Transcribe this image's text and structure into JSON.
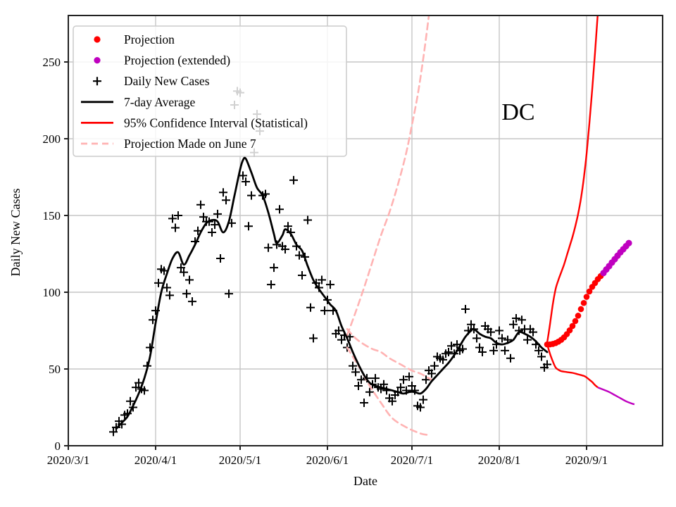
{
  "figure": {
    "region_label": "DC",
    "xlabel": "Date",
    "ylabel": "Daily New Cases"
  },
  "chart_data": {
    "type": "line",
    "title": "",
    "xlabel": "Date",
    "ylabel": "Daily New Cases",
    "year": "2020",
    "x_tick_labels": [
      "2020/3/1",
      "2020/4/1",
      "2020/5/1",
      "2020/6/1",
      "2020/7/1",
      "2020/8/1",
      "2020/9/1"
    ],
    "y_ticks": [
      0,
      50,
      100,
      150,
      200,
      250
    ],
    "ylim": [
      0,
      280
    ],
    "grid": true,
    "legend_position": "upper left",
    "region_label": "DC",
    "colors": {
      "projection": "#ff0000",
      "projection_extended": "#bf00bf",
      "daily_cases": "#000000",
      "average": "#000000",
      "confidence_interval": "#ff0000",
      "june7_projection": "#ffb3b3",
      "grid": "#c6c6c6",
      "spine": "#222222"
    },
    "legend": {
      "items": [
        {
          "label": "Projection",
          "marker": "dot",
          "color": "#ff0000"
        },
        {
          "label": "Projection (extended)",
          "marker": "dot",
          "color": "#bf00bf"
        },
        {
          "label": "Daily New Cases",
          "marker": "plus",
          "color": "#000000"
        },
        {
          "label": "7-day Average",
          "marker": "line",
          "color": "#000000"
        },
        {
          "label": "95% Confidence Interval (Statistical)",
          "marker": "line",
          "color": "#ff0000"
        },
        {
          "label": "Projection Made on June 7",
          "marker": "dashed",
          "color": "#ffb3b3"
        }
      ]
    },
    "series": {
      "daily_new_cases": [
        [
          "3/17",
          9
        ],
        [
          "3/18",
          12
        ],
        [
          "3/19",
          16
        ],
        [
          "3/20",
          14
        ],
        [
          "3/21",
          20
        ],
        [
          "3/22",
          21
        ],
        [
          "3/23",
          29
        ],
        [
          "3/24",
          25
        ],
        [
          "3/25",
          38
        ],
        [
          "3/26",
          41
        ],
        [
          "3/27",
          37
        ],
        [
          "3/28",
          36
        ],
        [
          "3/29",
          52
        ],
        [
          "3/30",
          64
        ],
        [
          "3/31",
          82
        ],
        [
          "4/1",
          88
        ],
        [
          "4/2",
          106
        ],
        [
          "4/3",
          115
        ],
        [
          "4/4",
          114
        ],
        [
          "4/5",
          103
        ],
        [
          "4/6",
          98
        ],
        [
          "4/7",
          148
        ],
        [
          "4/8",
          142
        ],
        [
          "4/9",
          150
        ],
        [
          "4/10",
          116
        ],
        [
          "4/11",
          113
        ],
        [
          "4/12",
          99
        ],
        [
          "4/13",
          108
        ],
        [
          "4/14",
          94
        ],
        [
          "4/15",
          133
        ],
        [
          "4/16",
          140
        ],
        [
          "4/17",
          157
        ],
        [
          "4/18",
          149
        ],
        [
          "4/19",
          146
        ],
        [
          "4/20",
          146
        ],
        [
          "4/21",
          139
        ],
        [
          "4/22",
          144
        ],
        [
          "4/23",
          151
        ],
        [
          "4/24",
          122
        ],
        [
          "4/25",
          165
        ],
        [
          "4/26",
          160
        ],
        [
          "4/27",
          99
        ],
        [
          "4/28",
          145
        ],
        [
          "4/29",
          222
        ],
        [
          "4/30",
          231
        ],
        [
          "5/1",
          230
        ],
        [
          "5/2",
          176
        ],
        [
          "5/3",
          172
        ],
        [
          "5/4",
          143
        ],
        [
          "5/5",
          163
        ],
        [
          "5/6",
          191
        ],
        [
          "5/7",
          216
        ],
        [
          "5/8",
          205
        ],
        [
          "5/9",
          163
        ],
        [
          "5/10",
          164
        ],
        [
          "5/11",
          129
        ],
        [
          "5/12",
          105
        ],
        [
          "5/13",
          116
        ],
        [
          "5/14",
          131
        ],
        [
          "5/15",
          154
        ],
        [
          "5/16",
          130
        ],
        [
          "5/17",
          128
        ],
        [
          "5/18",
          143
        ],
        [
          "5/19",
          139
        ],
        [
          "5/20",
          173
        ],
        [
          "5/21",
          130
        ],
        [
          "5/22",
          124
        ],
        [
          "5/23",
          111
        ],
        [
          "5/24",
          123
        ],
        [
          "5/25",
          147
        ],
        [
          "5/26",
          90
        ],
        [
          "5/27",
          70
        ],
        [
          "5/28",
          106
        ],
        [
          "5/29",
          103
        ],
        [
          "5/30",
          108
        ],
        [
          "5/31",
          88
        ],
        [
          "6/1",
          95
        ],
        [
          "6/2",
          105
        ],
        [
          "6/3",
          88
        ],
        [
          "6/4",
          73
        ],
        [
          "6/5",
          75
        ],
        [
          "6/6",
          69
        ],
        [
          "6/7",
          72
        ],
        [
          "6/8",
          64
        ],
        [
          "6/9",
          71
        ],
        [
          "6/10",
          52
        ],
        [
          "6/11",
          48
        ],
        [
          "6/12",
          39
        ],
        [
          "6/13",
          43
        ],
        [
          "6/14",
          28
        ],
        [
          "6/15",
          44
        ],
        [
          "6/16",
          35
        ],
        [
          "6/17",
          40
        ],
        [
          "6/18",
          44
        ],
        [
          "6/19",
          38
        ],
        [
          "6/20",
          37
        ],
        [
          "6/21",
          40
        ],
        [
          "6/22",
          36
        ],
        [
          "6/23",
          31
        ],
        [
          "6/24",
          29
        ],
        [
          "6/25",
          33
        ],
        [
          "6/26",
          35
        ],
        [
          "6/27",
          38
        ],
        [
          "6/28",
          43
        ],
        [
          "6/29",
          36
        ],
        [
          "6/30",
          45
        ],
        [
          "7/1",
          39
        ],
        [
          "7/2",
          36
        ],
        [
          "7/3",
          26
        ],
        [
          "7/4",
          25
        ],
        [
          "7/5",
          30
        ],
        [
          "7/6",
          43
        ],
        [
          "7/7",
          49
        ],
        [
          "7/8",
          47
        ],
        [
          "7/9",
          52
        ],
        [
          "7/10",
          58
        ],
        [
          "7/11",
          57
        ],
        [
          "7/12",
          56
        ],
        [
          "7/13",
          60
        ],
        [
          "7/14",
          61
        ],
        [
          "7/15",
          65
        ],
        [
          "7/16",
          60
        ],
        [
          "7/17",
          66
        ],
        [
          "7/18",
          62
        ],
        [
          "7/19",
          63
        ],
        [
          "7/20",
          89
        ],
        [
          "7/21",
          75
        ],
        [
          "7/22",
          79
        ],
        [
          "7/23",
          76
        ],
        [
          "7/24",
          70
        ],
        [
          "7/25",
          64
        ],
        [
          "7/26",
          61
        ],
        [
          "7/27",
          78
        ],
        [
          "7/28",
          76
        ],
        [
          "7/29",
          74
        ],
        [
          "7/30",
          62
        ],
        [
          "7/31",
          66
        ],
        [
          "8/1",
          75
        ],
        [
          "8/2",
          70
        ],
        [
          "8/3",
          62
        ],
        [
          "8/4",
          69
        ],
        [
          "8/5",
          57
        ],
        [
          "8/6",
          79
        ],
        [
          "8/7",
          83
        ],
        [
          "8/8",
          75
        ],
        [
          "8/9",
          82
        ],
        [
          "8/10",
          76
        ],
        [
          "8/11",
          69
        ],
        [
          "8/12",
          76
        ],
        [
          "8/13",
          74
        ],
        [
          "8/14",
          66
        ],
        [
          "8/15",
          62
        ],
        [
          "8/16",
          58
        ],
        [
          "8/17",
          51
        ],
        [
          "8/18",
          53
        ]
      ],
      "seven_day_average": [
        [
          "3/18",
          11
        ],
        [
          "3/20",
          15
        ],
        [
          "3/22",
          19
        ],
        [
          "3/24",
          26
        ],
        [
          "3/26",
          34
        ],
        [
          "3/28",
          44
        ],
        [
          "3/30",
          58
        ],
        [
          "4/1",
          80
        ],
        [
          "4/3",
          100
        ],
        [
          "4/5",
          112
        ],
        [
          "4/7",
          122
        ],
        [
          "4/9",
          126
        ],
        [
          "4/11",
          118
        ],
        [
          "4/13",
          124
        ],
        [
          "4/15",
          131
        ],
        [
          "4/17",
          139
        ],
        [
          "4/19",
          145
        ],
        [
          "4/21",
          147
        ],
        [
          "4/23",
          146
        ],
        [
          "4/25",
          139
        ],
        [
          "4/27",
          146
        ],
        [
          "4/29",
          163
        ],
        [
          "5/1",
          180
        ],
        [
          "5/2",
          186
        ],
        [
          "5/3",
          187
        ],
        [
          "5/5",
          178
        ],
        [
          "5/7",
          168
        ],
        [
          "5/9",
          163
        ],
        [
          "5/11",
          152
        ],
        [
          "5/13",
          138
        ],
        [
          "5/14",
          132
        ],
        [
          "5/16",
          137
        ],
        [
          "5/17",
          141
        ],
        [
          "5/19",
          138
        ],
        [
          "5/21",
          131
        ],
        [
          "5/23",
          127
        ],
        [
          "5/25",
          117
        ],
        [
          "5/27",
          108
        ],
        [
          "5/29",
          102
        ],
        [
          "5/31",
          97
        ],
        [
          "6/2",
          92
        ],
        [
          "6/4",
          88
        ],
        [
          "6/6",
          78
        ],
        [
          "6/8",
          70
        ],
        [
          "6/10",
          61
        ],
        [
          "6/12",
          53
        ],
        [
          "6/14",
          46
        ],
        [
          "6/16",
          41
        ],
        [
          "6/18",
          39
        ],
        [
          "6/20",
          38
        ],
        [
          "6/22",
          37
        ],
        [
          "6/24",
          36
        ],
        [
          "6/26",
          35
        ],
        [
          "6/28",
          34
        ],
        [
          "6/30",
          35
        ],
        [
          "7/2",
          35
        ],
        [
          "7/4",
          34
        ],
        [
          "7/6",
          37
        ],
        [
          "7/8",
          42
        ],
        [
          "7/10",
          46
        ],
        [
          "7/12",
          50
        ],
        [
          "7/14",
          54
        ],
        [
          "7/16",
          59
        ],
        [
          "7/18",
          65
        ],
        [
          "7/20",
          71
        ],
        [
          "7/22",
          75
        ],
        [
          "7/23",
          76
        ],
        [
          "7/25",
          73
        ],
        [
          "7/27",
          71
        ],
        [
          "7/29",
          70
        ],
        [
          "7/31",
          67
        ],
        [
          "8/2",
          66
        ],
        [
          "8/4",
          67
        ],
        [
          "8/6",
          69
        ],
        [
          "8/8",
          74
        ],
        [
          "8/10",
          73
        ],
        [
          "8/12",
          71
        ],
        [
          "8/14",
          68
        ],
        [
          "8/16",
          64
        ],
        [
          "8/18",
          61
        ]
      ],
      "projection": [
        [
          "8/18",
          66
        ],
        [
          "8/19",
          66
        ],
        [
          "8/20",
          66.3
        ],
        [
          "8/21",
          66.9
        ],
        [
          "8/22",
          67.8
        ],
        [
          "8/23",
          69
        ],
        [
          "8/24",
          70.6
        ],
        [
          "8/25",
          72.7
        ],
        [
          "8/26",
          75.2
        ],
        [
          "8/27",
          78
        ],
        [
          "8/28",
          81.2
        ],
        [
          "8/29",
          84.7
        ],
        [
          "8/30",
          89
        ],
        [
          "8/31",
          93
        ],
        [
          "9/1",
          97
        ],
        [
          "9/2",
          100.5
        ],
        [
          "9/3",
          103.5
        ],
        [
          "9/4",
          106
        ],
        [
          "9/5",
          108.5
        ],
        [
          "9/6",
          110.5
        ]
      ],
      "projection_extended": [
        [
          "9/7",
          112.5
        ],
        [
          "9/8",
          114.8
        ],
        [
          "9/9",
          117
        ],
        [
          "9/10",
          119.3
        ],
        [
          "9/11",
          121.5
        ],
        [
          "9/12",
          123.8
        ],
        [
          "9/13",
          126
        ],
        [
          "9/14",
          128
        ],
        [
          "9/15",
          130
        ],
        [
          "9/16",
          132
        ]
      ],
      "ci_upper": [
        [
          "8/18",
          67
        ],
        [
          "8/19",
          79
        ],
        [
          "8/20",
          92
        ],
        [
          "8/21",
          102
        ],
        [
          "8/22",
          108
        ],
        [
          "8/23",
          113
        ],
        [
          "8/24",
          118
        ],
        [
          "8/25",
          124
        ],
        [
          "8/26",
          130
        ],
        [
          "8/27",
          136
        ],
        [
          "8/28",
          143
        ],
        [
          "8/29",
          151
        ],
        [
          "8/30",
          161
        ],
        [
          "8/31",
          174
        ],
        [
          "9/1",
          190
        ],
        [
          "9/2",
          210
        ],
        [
          "9/3",
          232
        ],
        [
          "9/4",
          256
        ],
        [
          "9/5",
          282
        ]
      ],
      "ci_lower": [
        [
          "8/18",
          66
        ],
        [
          "8/19",
          60
        ],
        [
          "8/20",
          55
        ],
        [
          "8/21",
          51
        ],
        [
          "8/22",
          49.5
        ],
        [
          "8/23",
          48.6
        ],
        [
          "8/25",
          48
        ],
        [
          "8/27",
          47.5
        ],
        [
          "8/29",
          46.5
        ],
        [
          "8/31",
          45.5
        ],
        [
          "9/1",
          44.5
        ],
        [
          "9/2",
          43
        ],
        [
          "9/3",
          41.5
        ],
        [
          "9/4",
          39.5
        ],
        [
          "9/5",
          38
        ]
      ],
      "ci_lower_extended": [
        [
          "9/5",
          38
        ],
        [
          "9/7",
          36.5
        ],
        [
          "9/9",
          35
        ],
        [
          "9/11",
          33
        ],
        [
          "9/13",
          31
        ],
        [
          "9/15",
          29
        ],
        [
          "9/17",
          27.5
        ],
        [
          "9/18",
          27
        ]
      ],
      "june7_projection_upper": [
        [
          "6/8",
          72
        ],
        [
          "6/11",
          87
        ],
        [
          "6/14",
          103
        ],
        [
          "6/17",
          120
        ],
        [
          "6/20",
          137
        ],
        [
          "6/23",
          152
        ],
        [
          "6/26",
          170
        ],
        [
          "6/29",
          191
        ],
        [
          "7/1",
          209
        ],
        [
          "7/3",
          228
        ],
        [
          "7/5",
          252
        ],
        [
          "7/7",
          280
        ]
      ],
      "june7_projection_mid": [
        [
          "6/8",
          76
        ],
        [
          "6/11",
          70
        ],
        [
          "6/14",
          66
        ],
        [
          "6/17",
          63
        ],
        [
          "6/20",
          61
        ],
        [
          "6/23",
          57
        ],
        [
          "6/27",
          53
        ],
        [
          "7/1",
          49
        ],
        [
          "7/4",
          47
        ],
        [
          "7/6",
          45
        ],
        [
          "7/8",
          43
        ]
      ],
      "june7_projection_lower": [
        [
          "6/8",
          64
        ],
        [
          "6/10",
          58
        ],
        [
          "6/13",
          49
        ],
        [
          "6/16",
          39
        ],
        [
          "6/20",
          28
        ],
        [
          "6/24",
          18
        ],
        [
          "6/29",
          12
        ],
        [
          "7/4",
          8
        ],
        [
          "7/7",
          7
        ]
      ]
    }
  }
}
